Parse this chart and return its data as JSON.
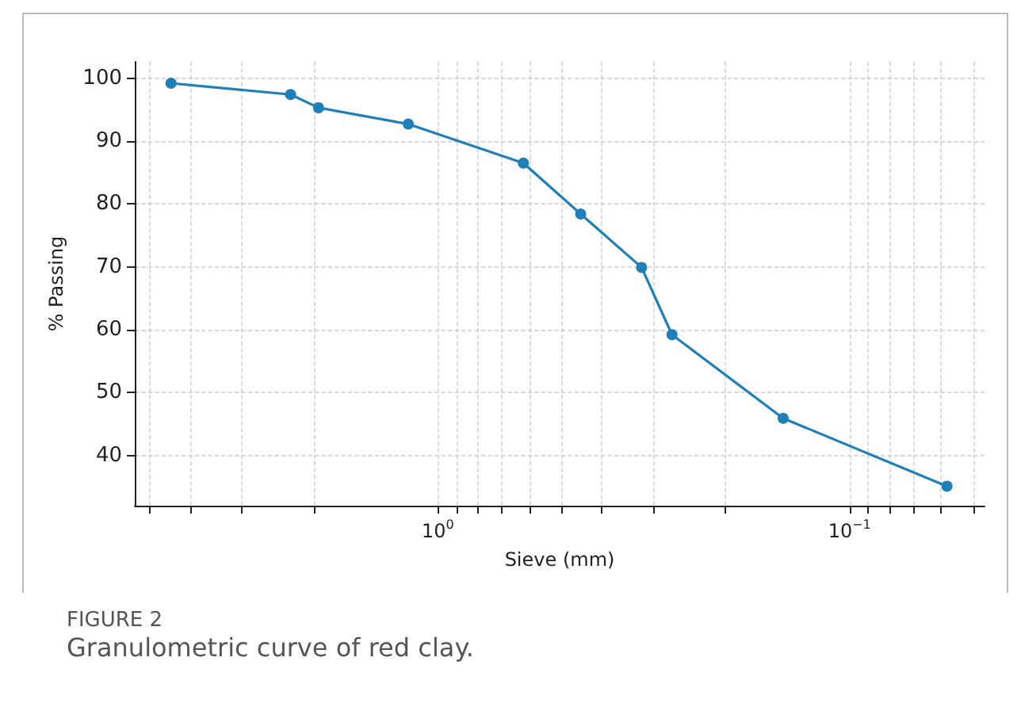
{
  "chart_data": {
    "type": "line",
    "xlabel": "Sieve (mm)",
    "ylabel": "% Passing",
    "x": [
      4.45,
      2.28,
      1.95,
      1.18,
      0.62,
      0.45,
      0.32,
      0.27,
      0.145,
      0.058
    ],
    "series": [
      {
        "color": "#1f7fb8",
        "values": [
          99.2,
          97.4,
          95.3,
          92.7,
          86.5,
          78.4,
          69.9,
          59.2,
          45.9,
          35.1
        ]
      }
    ],
    "xlim": [
      5.45,
      0.047
    ],
    "ylim": [
      32,
      102.6
    ],
    "log": "x",
    "xticks": [
      {
        "value": 5,
        "label": null
      },
      {
        "value": 4,
        "label": null
      },
      {
        "value": 3,
        "label": null
      },
      {
        "value": 2,
        "label": null
      },
      {
        "value": 1,
        "label": "10$^{0}$"
      },
      {
        "value": 0.9,
        "label": null
      },
      {
        "value": 0.8,
        "label": null
      },
      {
        "value": 0.7,
        "label": null
      },
      {
        "value": 0.6,
        "label": null
      },
      {
        "value": 0.5,
        "label": null
      },
      {
        "value": 0.4,
        "label": null
      },
      {
        "value": 0.3,
        "label": null
      },
      {
        "value": 0.2,
        "label": null
      },
      {
        "value": 0.1,
        "label": "10$^{−1}$"
      },
      {
        "value": 0.09,
        "label": null
      },
      {
        "value": 0.08,
        "label": null
      },
      {
        "value": 0.07,
        "label": null
      },
      {
        "value": 0.06,
        "label": null
      },
      {
        "value": 0.05,
        "label": null
      }
    ],
    "yticks": [
      40,
      50,
      60,
      70,
      80,
      90,
      100
    ],
    "grid": true,
    "marker": "circle",
    "line_style": "solid",
    "annotations": [
      "FIGURE 2",
      "Granulometric curve of red clay."
    ]
  }
}
